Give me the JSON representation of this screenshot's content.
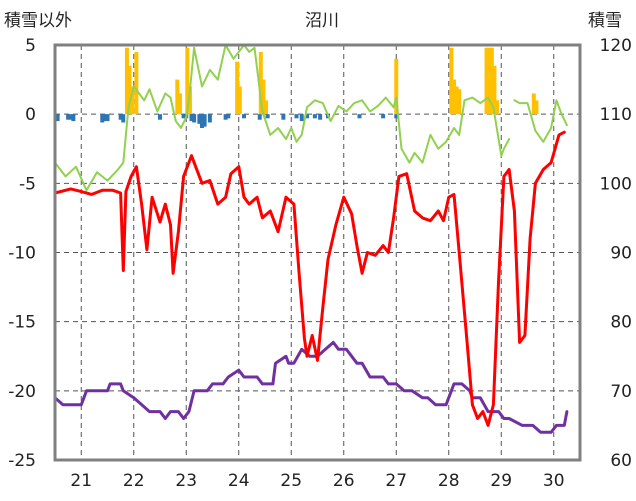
{
  "chart_data": {
    "type": "line",
    "title": "沼川",
    "ylabel_left": "積雪以外",
    "ylabel_right": "積雪",
    "ylim_left": [
      -25,
      5
    ],
    "ylim_right": [
      60,
      120
    ],
    "yticks_left": [
      5,
      0,
      -5,
      -10,
      -15,
      -20,
      -25
    ],
    "yticks_right": [
      120,
      110,
      100,
      90,
      80,
      70,
      60
    ],
    "xlim": [
      20.5,
      30.5
    ],
    "x_ticks": [
      21,
      22,
      23,
      24,
      25,
      26,
      27,
      28,
      29,
      30
    ],
    "x_tick_labels": [
      "21",
      "22",
      "23",
      "24",
      "25",
      "26",
      "27",
      "28",
      "29",
      "30"
    ],
    "grid": "dashed",
    "colors": {
      "temperature": "#ff0000",
      "humidity": "#92d050",
      "snow_depth": "#7030a0",
      "precip_pos": "#ffc000",
      "precip_neg": "#2e75b6",
      "frame": "#808080"
    },
    "series": [
      {
        "name": "temperature",
        "axis": "left",
        "x": [
          20.5,
          20.8,
          21.0,
          21.2,
          21.4,
          21.6,
          21.75,
          21.8,
          21.85,
          21.95,
          22.05,
          22.15,
          22.25,
          22.35,
          22.5,
          22.6,
          22.7,
          22.75,
          22.85,
          22.95,
          23.1,
          23.3,
          23.45,
          23.6,
          23.75,
          23.85,
          24.0,
          24.1,
          24.2,
          24.35,
          24.45,
          24.6,
          24.75,
          24.9,
          25.05,
          25.15,
          25.25,
          25.3,
          25.4,
          25.5,
          25.6,
          25.7,
          25.85,
          26.0,
          26.15,
          26.25,
          26.35,
          26.45,
          26.6,
          26.75,
          26.85,
          26.95,
          27.05,
          27.2,
          27.35,
          27.5,
          27.65,
          27.8,
          27.9,
          28.0,
          28.1,
          28.2,
          28.35,
          28.45,
          28.55,
          28.65,
          28.75,
          28.85,
          28.95,
          29.05,
          29.15,
          29.25,
          29.35,
          29.45,
          29.55,
          29.65,
          29.8,
          29.95,
          30.1,
          30.2
        ],
        "values": [
          -5.7,
          -5.4,
          -5.6,
          -5.8,
          -5.5,
          -5.5,
          -5.7,
          -11.3,
          -5.6,
          -4.5,
          -3.8,
          -6.5,
          -9.8,
          -6.0,
          -7.8,
          -6.5,
          -8.0,
          -11.5,
          -8.5,
          -4.5,
          -3.0,
          -5.0,
          -4.8,
          -6.5,
          -6.0,
          -4.3,
          -3.8,
          -6.0,
          -6.5,
          -6.0,
          -7.5,
          -7.0,
          -8.5,
          -6.0,
          -6.5,
          -11.5,
          -16.2,
          -17.5,
          -16.0,
          -17.8,
          -14.0,
          -10.5,
          -8.0,
          -6.0,
          -7.2,
          -9.5,
          -11.5,
          -10.0,
          -10.2,
          -9.5,
          -10.0,
          -7.5,
          -4.5,
          -4.3,
          -7.0,
          -7.5,
          -7.7,
          -7.0,
          -7.7,
          -6.0,
          -5.8,
          -10.0,
          -16.5,
          -21.0,
          -22.0,
          -21.5,
          -22.5,
          -21.0,
          -12.0,
          -4.5,
          -4.0,
          -7.0,
          -16.5,
          -16.0,
          -9.0,
          -5.0,
          -4.0,
          -3.5,
          -1.5,
          -1.3
        ]
      },
      {
        "name": "humidity",
        "axis": "left",
        "x": [
          20.5,
          20.7,
          20.9,
          21.1,
          21.3,
          21.5,
          21.7,
          21.8,
          21.9,
          22.0,
          22.1,
          22.2,
          22.3,
          22.45,
          22.6,
          22.7,
          22.8,
          22.9,
          23.0,
          23.05,
          23.15,
          23.3,
          23.45,
          23.6,
          23.75,
          23.9,
          24.1,
          24.2,
          24.3,
          24.45,
          24.6,
          24.75,
          24.9,
          25.0,
          25.1,
          25.2,
          25.3,
          25.45,
          25.6,
          25.75,
          25.9,
          26.05,
          26.2,
          26.35,
          26.5,
          26.65,
          26.8,
          26.95,
          27.0,
          27.1,
          27.25,
          27.35,
          27.5,
          27.65,
          27.8,
          27.95,
          28.1,
          28.2,
          28.3,
          28.45,
          28.6,
          28.75,
          28.85,
          29.0,
          29.05,
          29.15
        ],
        "values": [
          -3.5,
          -4.5,
          -3.8,
          -5.5,
          -4.2,
          -4.8,
          -4.0,
          -3.5,
          0.5,
          2.0,
          1.5,
          1.0,
          1.8,
          0.2,
          1.5,
          1.2,
          -0.5,
          -1.0,
          -0.2,
          1.0,
          4.8,
          2.0,
          3.2,
          2.5,
          5.0,
          4.0,
          5.0,
          4.5,
          4.8,
          0.2,
          -1.5,
          -1.0,
          -1.8,
          -1.0,
          -2.0,
          -1.5,
          0.5,
          1.0,
          0.8,
          -0.5,
          0.6,
          0.2,
          0.8,
          1.0,
          0.2,
          0.6,
          1.2,
          0.5,
          1.2,
          -2.5,
          -3.5,
          -2.8,
          -3.5,
          -1.5,
          -2.5,
          -2.0,
          -1.0,
          -1.5,
          1.0,
          1.2,
          0.8,
          1.2,
          0.5,
          -3.0,
          -2.5,
          -1.8
        ]
      },
      {
        "name": "humidity",
        "axis": "left",
        "x": [
          29.25,
          29.35,
          29.5,
          29.65,
          29.8,
          29.95,
          30.05,
          30.15,
          30.25
        ],
        "values": [
          1.0,
          0.8,
          0.8,
          -1.2,
          -2.0,
          -1.0,
          1.0,
          0.0,
          -0.8
        ]
      },
      {
        "name": "snow_depth",
        "axis": "right",
        "x": [
          20.5,
          20.65,
          21.0,
          21.1,
          21.5,
          21.55,
          21.75,
          21.8,
          22.0,
          22.3,
          22.5,
          22.6,
          22.7,
          22.85,
          22.95,
          23.05,
          23.15,
          23.25,
          23.4,
          23.5,
          23.7,
          23.8,
          24.0,
          24.1,
          24.35,
          24.45,
          24.65,
          24.7,
          24.9,
          24.95,
          25.05,
          25.2,
          25.35,
          25.5,
          25.65,
          25.8,
          25.9,
          26.05,
          26.25,
          26.35,
          26.5,
          26.75,
          26.85,
          27.0,
          27.15,
          27.3,
          27.5,
          27.6,
          27.75,
          27.95,
          28.1,
          28.25,
          28.4,
          28.45,
          28.6,
          28.75,
          28.95,
          29.05,
          29.15,
          29.4,
          29.6,
          29.75,
          29.95,
          30.05,
          30.2,
          30.25
        ],
        "values": [
          69,
          68,
          68,
          70,
          70,
          71,
          71,
          70,
          69,
          67,
          67,
          66,
          67,
          67,
          66,
          67,
          70,
          70,
          70,
          71,
          71,
          72,
          73,
          72,
          72,
          71,
          71,
          74,
          75,
          74,
          74,
          76,
          75,
          75,
          76,
          77,
          76,
          76,
          74,
          74,
          72,
          72,
          71,
          71,
          70,
          70,
          69,
          69,
          68,
          68,
          71,
          71,
          70,
          69,
          69,
          67,
          67,
          66,
          66,
          65,
          65,
          64,
          64,
          65,
          65,
          67
        ]
      }
    ],
    "bars": [
      {
        "name": "precip_pos",
        "x": [
          21.87,
          21.92,
          21.97,
          22.05,
          22.83,
          22.88,
          23.02,
          23.07,
          23.97,
          24.02,
          24.42,
          24.47,
          24.52,
          27.0,
          28.05,
          28.1,
          28.15,
          28.2,
          28.72,
          28.77,
          28.82,
          28.87,
          28.92,
          29.62,
          29.67
        ],
        "values": [
          4.8,
          3.5,
          2.0,
          4.5,
          2.5,
          1.5,
          4.8,
          2.0,
          3.8,
          2.0,
          4.5,
          2.5,
          1.0,
          4.0,
          4.8,
          2.5,
          2.0,
          1.8,
          4.8,
          4.8,
          4.8,
          3.5,
          1.0,
          1.5,
          1.0
        ]
      },
      {
        "name": "precip_neg",
        "x": [
          20.55,
          20.75,
          20.8,
          20.85,
          21.4,
          21.45,
          21.5,
          21.75,
          21.8,
          22.5,
          22.95,
          23.0,
          23.1,
          23.15,
          23.25,
          23.3,
          23.35,
          23.45,
          23.75,
          23.8,
          24.1,
          24.4,
          24.55,
          24.85,
          25.1,
          25.2,
          25.3,
          25.45,
          25.55,
          25.7,
          26.3,
          26.75,
          27.0
        ],
        "values": [
          -0.5,
          -0.4,
          -0.4,
          -0.5,
          -0.6,
          -0.5,
          -0.5,
          -0.4,
          -0.6,
          -0.4,
          -0.3,
          -0.3,
          -0.5,
          -0.6,
          -0.7,
          -1.0,
          -0.9,
          -0.6,
          -0.4,
          -0.3,
          -0.3,
          -0.4,
          -0.3,
          -0.4,
          -0.3,
          -0.5,
          -0.3,
          -0.3,
          -0.4,
          -0.3,
          -0.3,
          -0.3,
          -0.3
        ]
      }
    ]
  }
}
